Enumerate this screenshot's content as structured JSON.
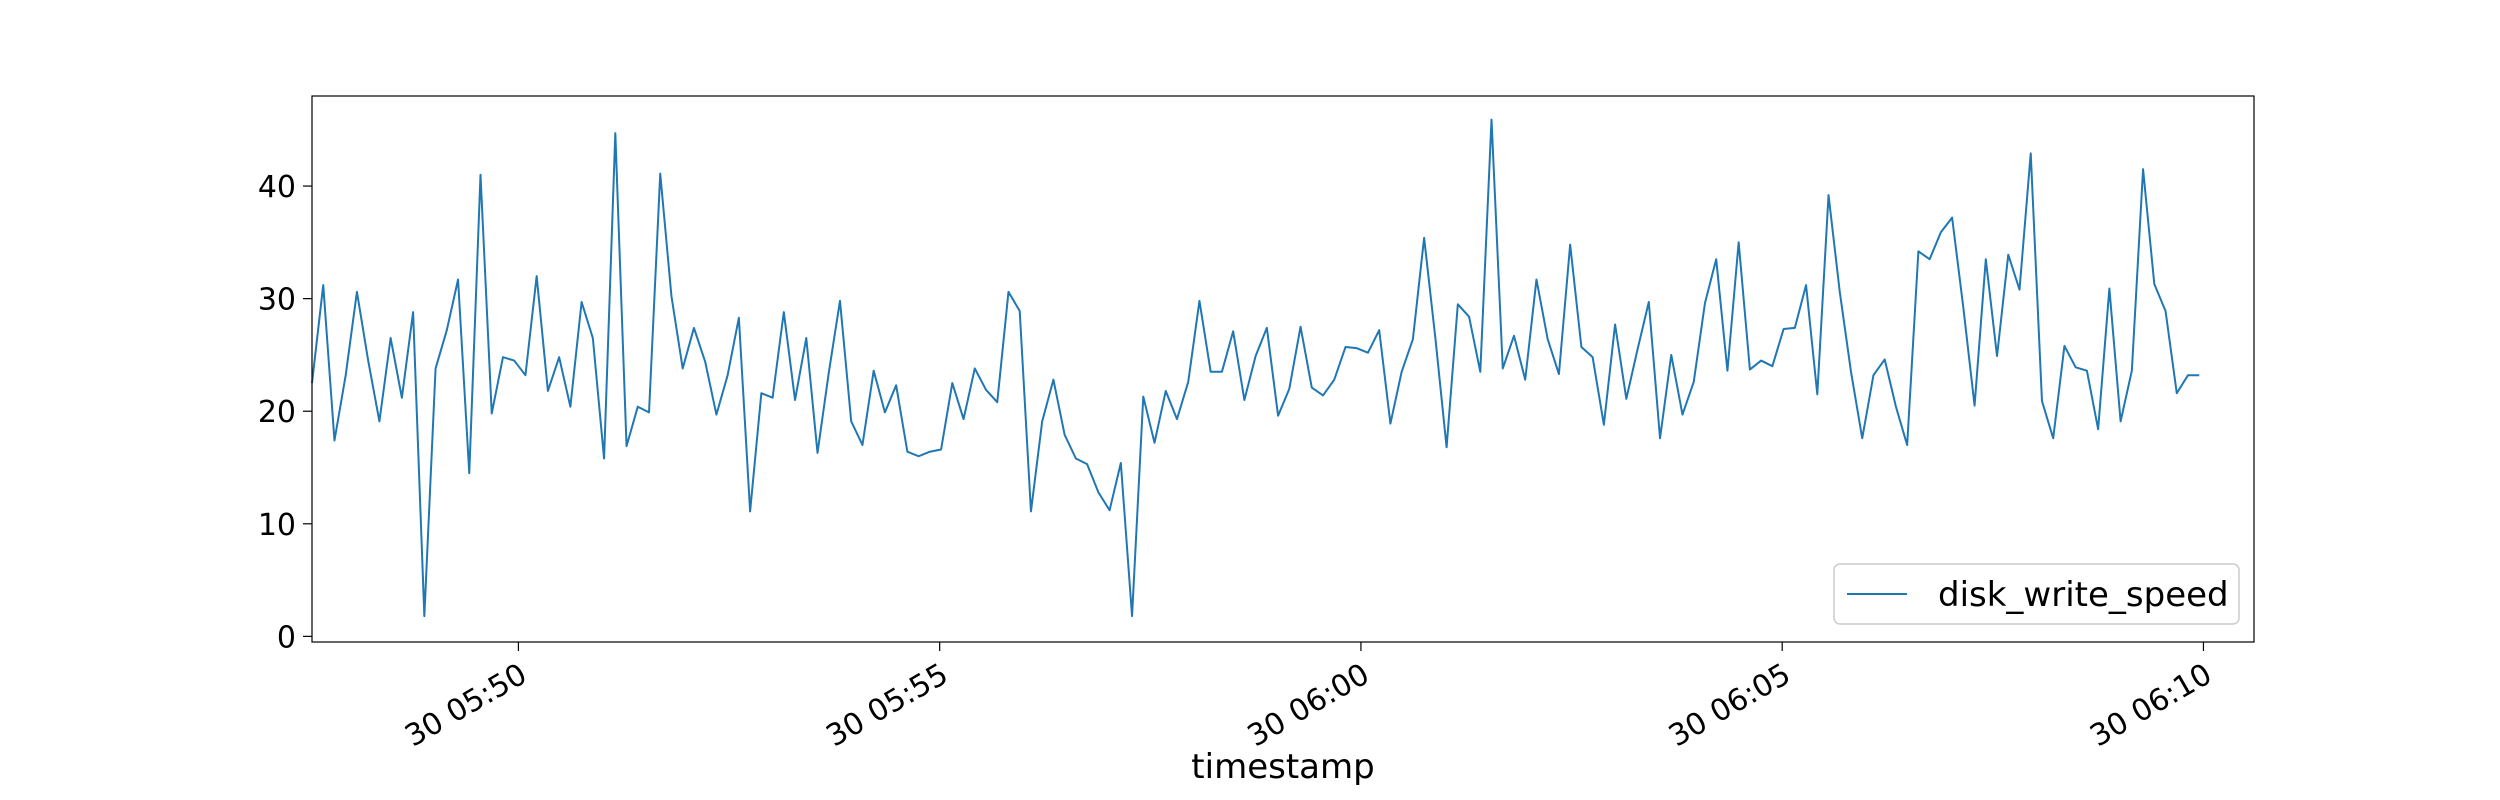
{
  "chart_data": {
    "type": "line",
    "xlabel": "timestamp",
    "ylabel": "",
    "title": "",
    "ylim": [
      -0.5,
      48
    ],
    "xlim": [
      "2024-01-30 05:47:33",
      "2024-01-30 06:10:36"
    ],
    "x_ticks": [
      {
        "t": "2024-01-30 05:50:00",
        "label": "30 05:50"
      },
      {
        "t": "2024-01-30 05:55:00",
        "label": "30 05:55"
      },
      {
        "t": "2024-01-30 06:00:00",
        "label": "30 06:00"
      },
      {
        "t": "2024-01-30 06:05:00",
        "label": "30 06:05"
      },
      {
        "t": "2024-01-30 06:10:00",
        "label": "30 06:10"
      }
    ],
    "y_ticks": [
      0,
      10,
      20,
      30,
      40
    ],
    "grid": false,
    "legend_position": "lower-right",
    "series": [
      {
        "name": "disk_write_speed",
        "color": "#1f77b4",
        "start": "2024-01-30 05:47:33",
        "interval_seconds": 8,
        "values": [
          22.5,
          31.2,
          17.4,
          23.2,
          30.6,
          24.5,
          19.1,
          26.5,
          21.2,
          28.8,
          1.8,
          23.8,
          27.2,
          31.7,
          14.5,
          41.0,
          19.8,
          24.8,
          24.5,
          23.2,
          32.0,
          21.8,
          24.8,
          20.4,
          29.7,
          26.5,
          15.8,
          44.7,
          16.9,
          20.4,
          19.9,
          41.1,
          30.2,
          23.8,
          27.4,
          24.4,
          19.7,
          23.2,
          28.3,
          11.1,
          21.6,
          21.2,
          28.8,
          21.0,
          26.5,
          16.3,
          23.4,
          29.8,
          19.1,
          17.0,
          23.6,
          19.9,
          22.3,
          16.4,
          16.0,
          16.4,
          16.6,
          22.5,
          19.3,
          23.8,
          21.9,
          20.8,
          30.6,
          28.9,
          11.1,
          19.1,
          22.8,
          17.9,
          15.8,
          15.3,
          12.8,
          11.2,
          15.4,
          1.8,
          21.3,
          17.2,
          21.8,
          19.3,
          22.6,
          29.8,
          23.5,
          23.5,
          27.1,
          21.0,
          24.9,
          27.4,
          19.6,
          22.0,
          27.5,
          22.1,
          21.4,
          22.8,
          25.7,
          25.6,
          25.2,
          27.2,
          18.9,
          23.5,
          26.4,
          35.4,
          26.5,
          16.8,
          29.5,
          28.4,
          23.5,
          45.9,
          23.8,
          26.7,
          22.8,
          31.7,
          26.4,
          23.3,
          34.8,
          25.7,
          24.8,
          18.8,
          27.7,
          21.1,
          25.5,
          29.7,
          17.6,
          25.0,
          19.7,
          22.6,
          29.6,
          33.5,
          23.6,
          35.0,
          23.7,
          24.5,
          24.0,
          27.3,
          27.4,
          31.2,
          21.5,
          39.2,
          30.6,
          23.5,
          17.6,
          23.2,
          24.6,
          20.4,
          17.0,
          34.2,
          33.5,
          35.9,
          37.2,
          29.2,
          20.5,
          33.5,
          24.9,
          33.9,
          30.8,
          42.9,
          20.9,
          17.6,
          25.8,
          23.9,
          23.6,
          18.4,
          30.9,
          19.1,
          23.6,
          41.5,
          31.3,
          28.9,
          21.6,
          23.2,
          23.2
        ]
      }
    ]
  }
}
